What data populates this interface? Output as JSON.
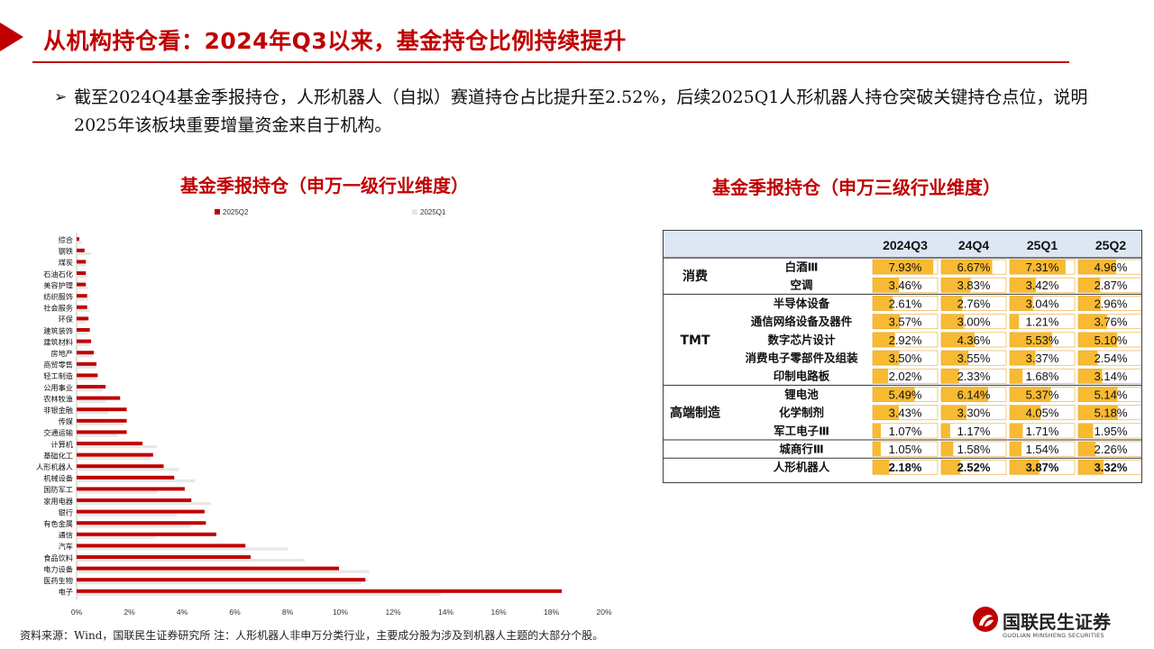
{
  "header": {
    "title": "从机构持仓看：2024年Q3以来，基金持仓比例持续提升"
  },
  "bullet": {
    "text": "截至2024Q4基金季报持仓，人形机器人（自拟）赛道持仓占比提升至2.52%，后续2025Q1人形机器人持仓突破关键持仓点位，说明2025年该板块重要增量资金来自于机构。"
  },
  "colors": {
    "accent": "#c00000",
    "series2": "#e7e7e7",
    "table_bar": "#f7b21c"
  },
  "chart_data": {
    "type": "bar",
    "orientation": "horizontal",
    "title": "基金季报持仓（申万一级行业维度）",
    "categories": [
      "综合",
      "钢铁",
      "煤炭",
      "石油石化",
      "美容护理",
      "纺织服饰",
      "社会服务",
      "环保",
      "建筑装饰",
      "建筑材料",
      "房地产",
      "商贸零售",
      "轻工制造",
      "公用事业",
      "农林牧渔",
      "非银金融",
      "传媒",
      "交通运输",
      "计算机",
      "基础化工",
      "人形机器人",
      "机械设备",
      "国防军工",
      "家用电器",
      "银行",
      "有色金属",
      "通信",
      "汽车",
      "食品饮料",
      "电力设备",
      "医药生物",
      "电子"
    ],
    "series": [
      {
        "name": "2025Q2",
        "color": "#c00000",
        "values": [
          0.1,
          0.3,
          0.35,
          0.35,
          0.35,
          0.4,
          0.4,
          0.45,
          0.5,
          0.55,
          0.65,
          0.75,
          0.8,
          1.1,
          1.65,
          1.9,
          1.9,
          1.9,
          2.5,
          2.9,
          3.3,
          3.7,
          4.1,
          4.35,
          4.85,
          4.9,
          5.3,
          6.4,
          6.6,
          9.95,
          10.95,
          18.4
        ]
      },
      {
        "name": "2025Q1",
        "color": "#e7e7e7",
        "values": [
          0.2,
          0.55,
          0.35,
          0.4,
          0.45,
          0.45,
          0.5,
          0.35,
          0.4,
          0.5,
          0.6,
          0.75,
          0.75,
          1.0,
          1.15,
          1.2,
          1.8,
          1.55,
          3.05,
          2.8,
          3.87,
          4.5,
          3.05,
          5.1,
          3.8,
          4.35,
          3.0,
          8.0,
          8.65,
          11.1,
          10.8,
          13.8
        ]
      }
    ],
    "xlim": [
      0,
      20
    ],
    "xticks": [
      "0%",
      "2%",
      "4%",
      "6%",
      "8%",
      "10%",
      "12%",
      "14%",
      "16%",
      "18%",
      "20%"
    ],
    "legend_position": "top"
  },
  "table": {
    "title": "基金季报持仓（申万三级行业维度）",
    "headers": [
      "2024Q3",
      "24Q4",
      "25Q1",
      "25Q2"
    ],
    "groups": [
      {
        "name": "消费",
        "rows": [
          {
            "label": "白酒Ⅲ",
            "values": [
              "7.93%",
              "6.67%",
              "7.31%",
              "4.96%"
            ],
            "nums": [
              7.93,
              6.67,
              7.31,
              4.96
            ]
          },
          {
            "label": "空调",
            "values": [
              "3.46%",
              "3.83%",
              "3.42%",
              "2.87%"
            ],
            "nums": [
              3.46,
              3.83,
              3.42,
              2.87
            ]
          }
        ]
      },
      {
        "name": "TMT",
        "rows": [
          {
            "label": "半导体设备",
            "values": [
              "2.61%",
              "2.76%",
              "3.04%",
              "2.96%"
            ],
            "nums": [
              2.61,
              2.76,
              3.04,
              2.96
            ]
          },
          {
            "label": "通信网络设备及器件",
            "values": [
              "3.57%",
              "3.00%",
              "1.21%",
              "3.76%"
            ],
            "nums": [
              3.57,
              3.0,
              1.21,
              3.76
            ]
          },
          {
            "label": "数字芯片设计",
            "values": [
              "2.92%",
              "4.36%",
              "5.53%",
              "5.10%"
            ],
            "nums": [
              2.92,
              4.36,
              5.53,
              5.1
            ]
          },
          {
            "label": "消费电子零部件及组装",
            "values": [
              "3.50%",
              "3.55%",
              "3.37%",
              "2.54%"
            ],
            "nums": [
              3.5,
              3.55,
              3.37,
              2.54
            ]
          },
          {
            "label": "印制电路板",
            "values": [
              "2.02%",
              "2.33%",
              "1.68%",
              "3.14%"
            ],
            "nums": [
              2.02,
              2.33,
              1.68,
              3.14
            ]
          }
        ]
      },
      {
        "name": "高端制造",
        "rows": [
          {
            "label": "锂电池",
            "values": [
              "5.49%",
              "6.14%",
              "5.37%",
              "5.14%"
            ],
            "nums": [
              5.49,
              6.14,
              5.37,
              5.14
            ]
          },
          {
            "label": "化学制剂",
            "values": [
              "3.43%",
              "3.30%",
              "4.05%",
              "5.18%"
            ],
            "nums": [
              3.43,
              3.3,
              4.05,
              5.18
            ]
          },
          {
            "label": "军工电子Ⅲ",
            "values": [
              "1.07%",
              "1.17%",
              "1.71%",
              "1.95%"
            ],
            "nums": [
              1.07,
              1.17,
              1.71,
              1.95
            ]
          }
        ]
      },
      {
        "name": "",
        "rows": [
          {
            "label": "城商行Ⅲ",
            "values": [
              "1.05%",
              "1.58%",
              "1.54%",
              "2.26%"
            ],
            "nums": [
              1.05,
              1.58,
              1.54,
              2.26
            ]
          }
        ]
      },
      {
        "name": "",
        "rows": [
          {
            "label": "人形机器人",
            "values": [
              "2.18%",
              "2.52%",
              "3.87%",
              "3.32%"
            ],
            "nums": [
              2.18,
              2.52,
              3.87,
              3.32
            ],
            "bold": true
          }
        ]
      }
    ]
  },
  "footer": {
    "source": "资料来源：Wind，国联民生证券研究所    注：人形机器人非申万分类行业，主要成分股为涉及到机器人主题的大部分个股。"
  },
  "logo": {
    "name": "国联民生证券",
    "subtitle": "GUOLIAN MINSHENG SECURITIES"
  }
}
